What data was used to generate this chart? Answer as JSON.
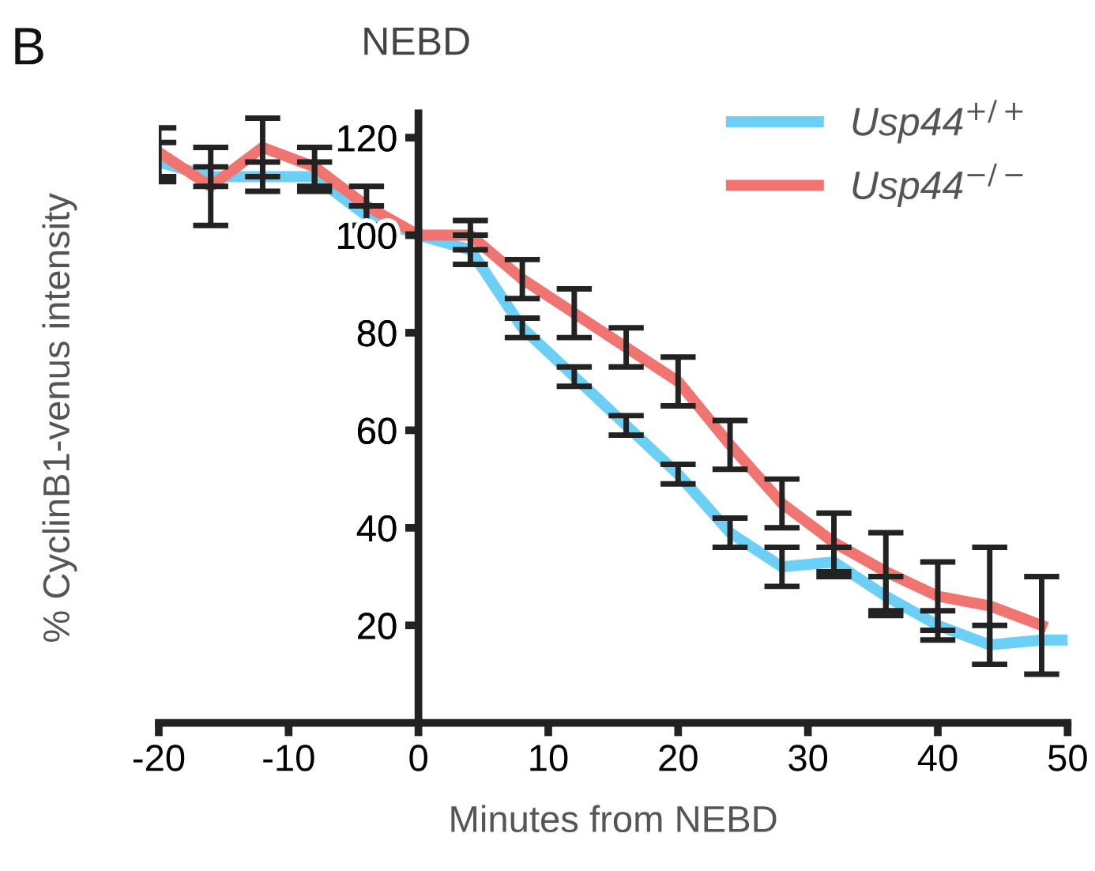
{
  "chart_data": {
    "type": "line",
    "xlabel": "Minutes from NEBD",
    "ylabel": "% CyclinB1-venus intensity",
    "annotations": [
      "B",
      "NEBD"
    ],
    "series": [
      {
        "name": "Usp44$^{+/+}$",
        "color": "#6ccff6",
        "x": [
          -20,
          -16,
          -12,
          -8,
          -4,
          0,
          4,
          8,
          12,
          16,
          20,
          24,
          28,
          32,
          36,
          40,
          44,
          48,
          50
        ],
        "values": [
          115,
          112,
          112,
          112,
          104,
          100,
          97,
          81,
          71,
          61,
          51,
          39,
          32,
          33,
          26,
          20,
          16,
          17,
          17
        ],
        "errors": [
          4,
          2,
          3,
          3,
          2,
          null,
          3,
          2,
          2,
          2,
          2,
          3,
          4,
          3,
          4,
          3,
          4,
          null,
          null
        ]
      },
      {
        "name": "Usp44$^{−/−}$",
        "color": "#f07470",
        "x": [
          -20,
          -16,
          -12,
          -8,
          -4,
          0,
          4,
          8,
          12,
          16,
          20,
          24,
          28,
          32,
          36,
          40,
          44,
          48
        ],
        "values": [
          117,
          110,
          118,
          114,
          106,
          100,
          100,
          91,
          84,
          77,
          70,
          57,
          45,
          37,
          31,
          26,
          24,
          20
        ],
        "errors": [
          5,
          8,
          6,
          4,
          4,
          null,
          3,
          4,
          5,
          4,
          5,
          5,
          5,
          6,
          8,
          7,
          12,
          10
        ]
      }
    ],
    "xlim": [
      -20,
      50
    ],
    "xticks": [
      -20,
      -10,
      0,
      10,
      20,
      30,
      40,
      50
    ],
    "ylim": [
      0,
      125
    ],
    "yticks": [
      20,
      40,
      60,
      80,
      100,
      120
    ],
    "grid": false,
    "legend": "top right",
    "marker": "none",
    "line_style": "solid"
  }
}
